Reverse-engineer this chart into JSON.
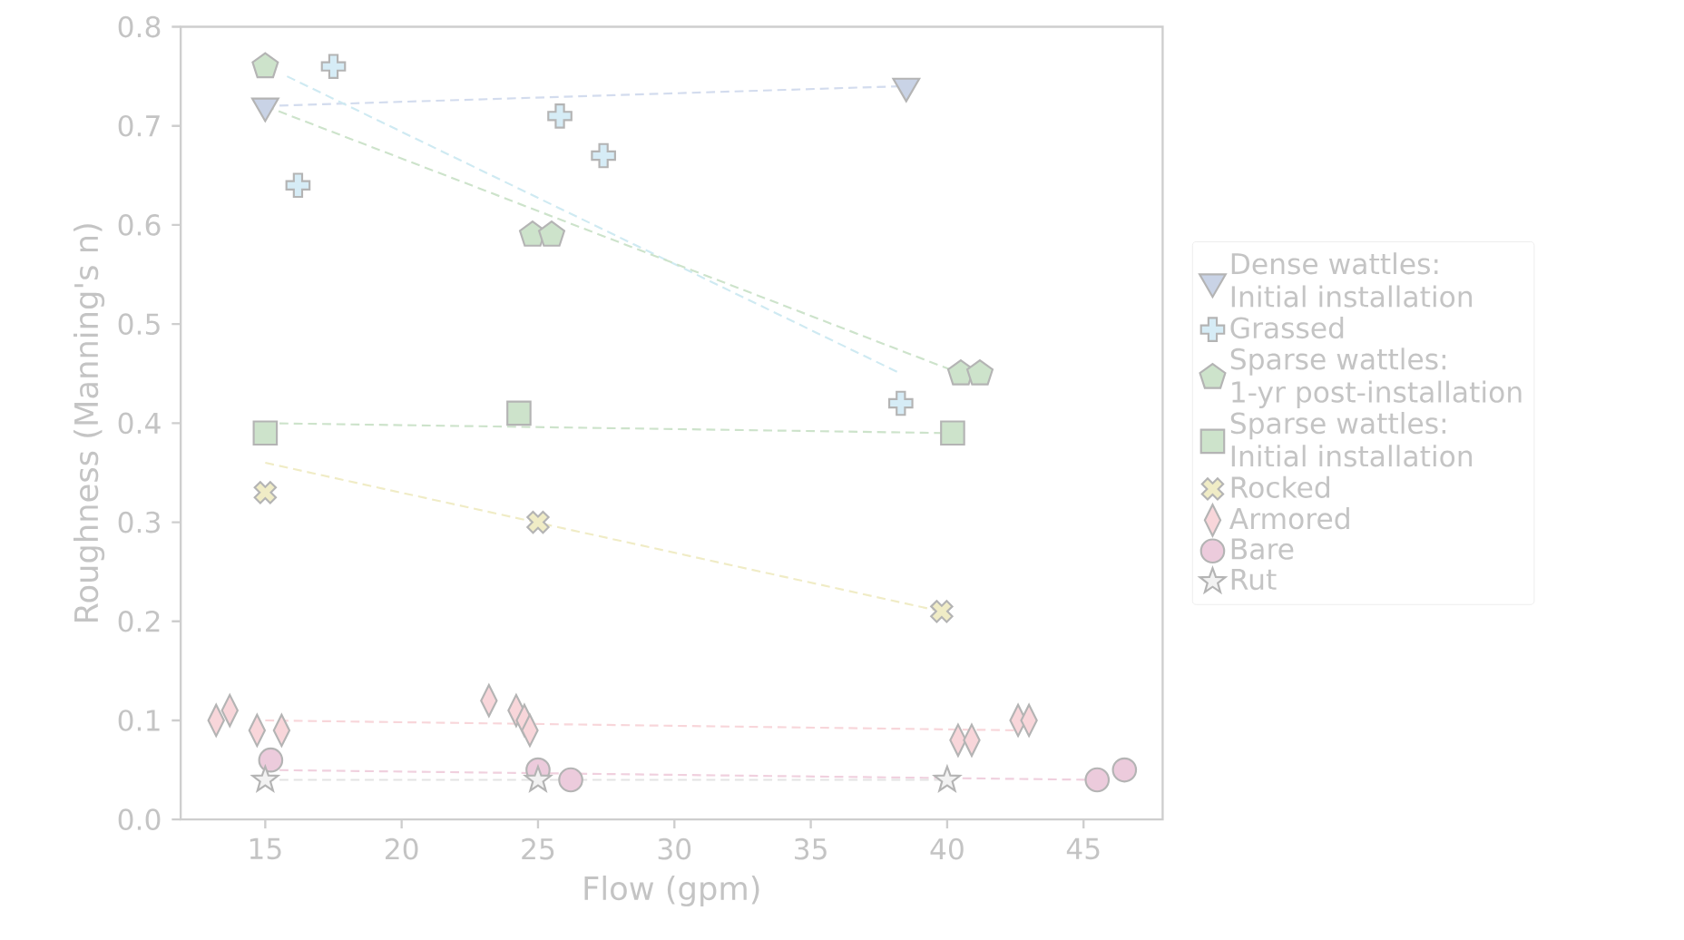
{
  "chart_data": {
    "type": "scatter",
    "xlabel": "Flow (gpm)",
    "ylabel": "Roughness (Manning's n)",
    "xlim": [
      11.9,
      47.9
    ],
    "ylim": [
      0,
      0.8
    ],
    "xticks": [
      15,
      20,
      25,
      30,
      35,
      40,
      45
    ],
    "yticks": [
      {
        "value": 0,
        "label": "0.0"
      },
      0.1,
      0.2,
      0.3,
      0.4,
      0.5,
      0.6,
      0.7,
      0.8
    ],
    "legend": "right",
    "grid": false,
    "series": [
      {
        "name": "Dense wattles:\nInitial installation",
        "marker": "triangle_down",
        "color": "#c9d3e6",
        "x": [
          15,
          38.5
        ],
        "values": [
          0.72,
          0.74
        ]
      },
      {
        "type": "line",
        "line_style": "dashed",
        "marker": "none",
        "color": "#d3dcee",
        "x": [
          15,
          38.3
        ],
        "values": [
          0.72,
          0.74
        ]
      },
      {
        "name": "Grassed",
        "marker": "plus",
        "color": "#d6ecf6",
        "x": [
          17.5,
          16.2,
          25.8,
          27.4,
          38.3
        ],
        "values": [
          0.76,
          0.64,
          0.71,
          0.67,
          0.42
        ]
      },
      {
        "type": "line",
        "line_style": "dashed",
        "marker": "none",
        "color": "#cfeaf2",
        "x": [
          15.8,
          38.3
        ],
        "values": [
          0.75,
          0.45
        ]
      },
      {
        "name": "Sparse wattles:\n1-yr post-installation",
        "color": "#cde3cb",
        "x": [
          15,
          24.8,
          25.5,
          40.5,
          41.2
        ],
        "values": [
          0.76,
          0.59,
          0.59,
          0.45,
          0.45
        ]
      },
      {
        "type": "line",
        "line_style": "dashed",
        "marker": "none",
        "color": "#cde3cb",
        "x": [
          15,
          40.5
        ],
        "values": [
          0.72,
          0.45
        ]
      },
      {
        "name": "Sparse wattles:\nInitial installation",
        "marker": "square",
        "color": "#cde3cb",
        "x": [
          15,
          24.3,
          40.2
        ],
        "values": [
          0.39,
          0.41,
          0.39
        ]
      },
      {
        "type": "line",
        "line_style": "dashed",
        "marker": "none",
        "color": "#cde3cb",
        "x": [
          15,
          40
        ],
        "values": [
          0.4,
          0.39
        ]
      },
      {
        "name": "Rocked",
        "marker": "x",
        "color": "#f0ecc6",
        "x": [
          15,
          25,
          39.8
        ],
        "values": [
          0.33,
          0.3,
          0.21
        ]
      },
      {
        "type": "line",
        "line_style": "dashed",
        "marker": "none",
        "color": "#f0ecc6",
        "x": [
          15,
          39.8
        ],
        "values": [
          0.36,
          0.21
        ]
      },
      {
        "name": "Armored",
        "marker": "diamond",
        "color": "#f8d6da",
        "x": [
          13.2,
          13.7,
          14.7,
          15.6,
          23.2,
          24.2,
          24.5,
          24.7,
          40.4,
          40.9,
          42.6,
          43.0
        ],
        "values": [
          0.1,
          0.11,
          0.09,
          0.09,
          0.12,
          0.11,
          0.1,
          0.09,
          0.08,
          0.08,
          0.1,
          0.1
        ]
      },
      {
        "type": "line",
        "line_style": "dashed",
        "marker": "none",
        "color": "#f8d6da",
        "x": [
          15,
          42.6
        ],
        "values": [
          0.1,
          0.09
        ]
      },
      {
        "name": "Bare",
        "marker": "circle",
        "color": "#eccbdc",
        "x": [
          15.2,
          25,
          26.2,
          39.9,
          45.5,
          46.5
        ],
        "values": [
          0.06,
          0.05,
          0.04,
          null,
          0.04,
          0.05
        ]
      },
      {
        "type": "line",
        "line_style": "dashed",
        "marker": "none",
        "color": "#f0d0de",
        "x": [
          15,
          45.5
        ],
        "values": [
          0.05,
          0.04
        ]
      },
      {
        "name": "Rut",
        "marker": "star",
        "color": "#f2f2f2",
        "x": [
          15,
          25,
          40
        ],
        "values": [
          0.04,
          0.04,
          0.04
        ]
      },
      {
        "type": "line",
        "line_style": "dashed",
        "marker": "none",
        "color": "#e4e4e4",
        "x": [
          15,
          40
        ],
        "values": [
          0.04,
          0.04
        ]
      }
    ]
  }
}
